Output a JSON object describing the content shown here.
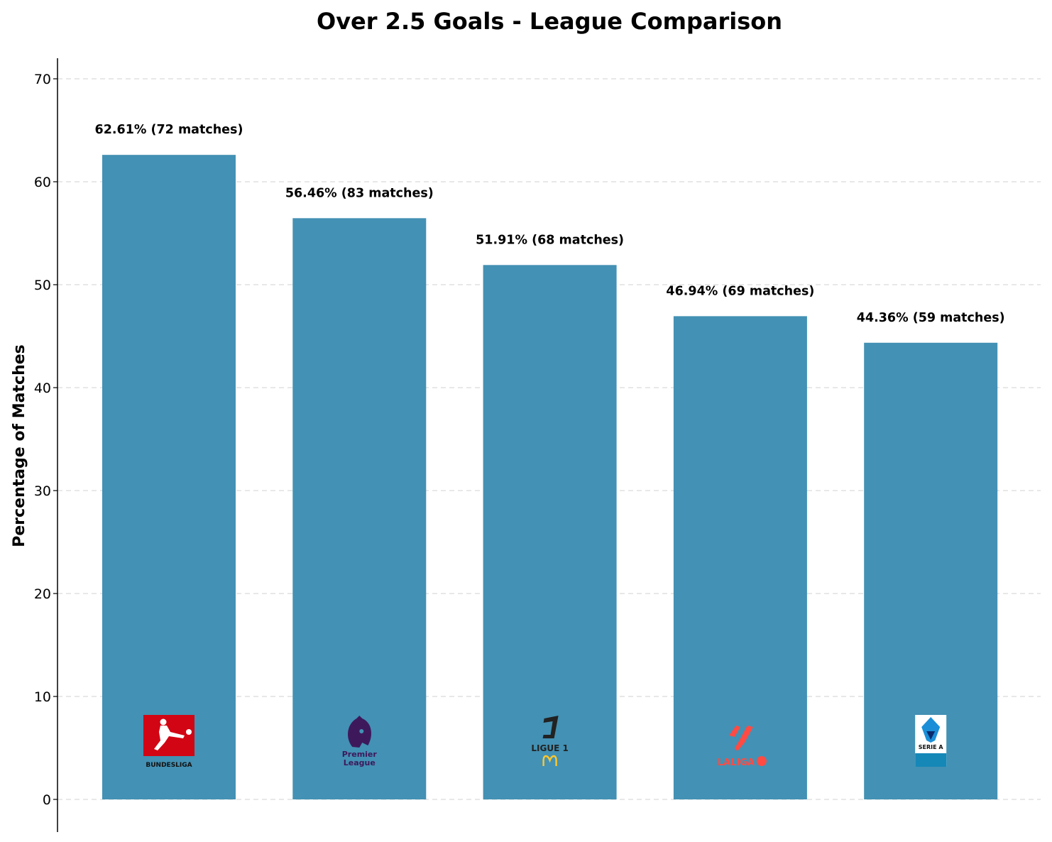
{
  "chart_data": {
    "type": "bar",
    "title": "Over 2.5 Goals - League Comparison",
    "xlabel": "",
    "ylabel": "Percentage of Matches",
    "ylim": [
      -3,
      72
    ],
    "yticks": [
      0,
      10,
      20,
      30,
      40,
      50,
      60,
      70
    ],
    "grid": "y, dashed",
    "categories": [
      "Bundesliga",
      "Premier League",
      "Ligue 1",
      "LaLiga",
      "Serie A"
    ],
    "values": [
      62.61,
      56.46,
      51.91,
      46.94,
      44.36
    ],
    "data_labels": [
      "62.61% (72 matches)",
      "56.46% (83 matches)",
      "51.91% (68 matches)",
      "46.94% (69 matches)",
      "44.36% (59 matches)"
    ],
    "bar_color": "#4391b4"
  },
  "logos": [
    {
      "name": "bundesliga-logo",
      "text": "BUNDESLIGA",
      "color": "#d20515"
    },
    {
      "name": "premier-league-logo",
      "text": [
        "Premier",
        "League"
      ],
      "color": "#3d195b"
    },
    {
      "name": "ligue1-logo",
      "text": "LIGUE 1",
      "color": "#222222"
    },
    {
      "name": "laliga-logo",
      "text": "LALIGA",
      "color": "#ff4b44"
    },
    {
      "name": "serie-a-logo",
      "text": "SERIE A",
      "color": "#1a8fd8"
    }
  ]
}
